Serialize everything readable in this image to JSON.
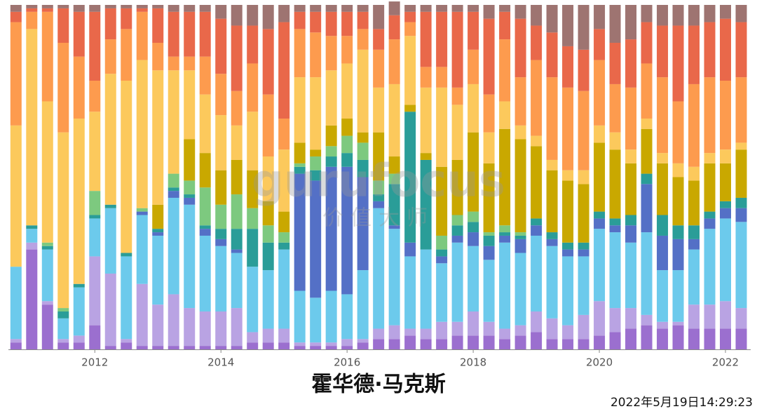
{
  "chart_data": {
    "type": "stacked-bar",
    "title": "霍华德·马克斯",
    "timestamp": "2022年5月19日14:29:23",
    "watermark": "gurufocus",
    "watermark_sub": "价值大师",
    "x": [
      2010.75,
      2011,
      2011.25,
      2011.5,
      2011.75,
      2012,
      2012.25,
      2012.5,
      2012.75,
      2013,
      2013.25,
      2013.5,
      2013.75,
      2014,
      2014.25,
      2014.5,
      2014.75,
      2015,
      2015.25,
      2015.5,
      2015.75,
      2016,
      2016.25,
      2016.5,
      2016.75,
      2017,
      2017.25,
      2017.5,
      2017.75,
      2018,
      2018.25,
      2018.5,
      2018.75,
      2019,
      2019.25,
      2019.5,
      2019.75,
      2020,
      2020.25,
      2020.5,
      2020.75,
      2021,
      2021.25,
      2021.5,
      2021.75,
      2022,
      2022.25
    ],
    "xlim": [
      2010.63,
      2022.4
    ],
    "xticks": [
      2012,
      2014,
      2016,
      2018,
      2020,
      2022
    ],
    "ylim": [
      0,
      100
    ],
    "series": [
      {
        "color": "#9b6fcf",
        "values": [
          2,
          29,
          13,
          2,
          2,
          7,
          1,
          2,
          1,
          1,
          1,
          1,
          1,
          1,
          1,
          2,
          2,
          2,
          1,
          1,
          1,
          1,
          2,
          3,
          3,
          4,
          3,
          3,
          4,
          4,
          4,
          3,
          4,
          5,
          3,
          3,
          3,
          4,
          5,
          6,
          7,
          6,
          7,
          6,
          6,
          6,
          6
        ]
      },
      {
        "color": "#b9a3e3",
        "values": [
          1,
          2,
          1,
          1,
          2,
          20,
          21,
          1,
          18,
          12,
          15,
          11,
          10,
          10,
          11,
          3,
          4,
          4,
          1,
          1,
          1,
          2,
          1,
          3,
          4,
          2,
          3,
          5,
          4,
          7,
          4,
          3,
          3,
          6,
          6,
          4,
          7,
          10,
          7,
          6,
          3,
          2,
          1,
          7,
          7,
          8,
          6
        ]
      },
      {
        "color": "#6ccaec",
        "values": [
          21,
          4,
          15,
          6,
          14,
          11,
          19,
          24,
          20,
          20,
          28,
          30,
          22,
          19,
          16,
          19,
          17,
          23,
          15,
          13,
          15,
          13,
          20,
          35,
          28,
          21,
          23,
          17,
          23,
          19,
          18,
          25,
          21,
          22,
          21,
          20,
          17,
          21,
          22,
          19,
          24,
          15,
          15,
          16,
          22,
          24,
          25
        ]
      },
      {
        "color": "#5470c6",
        "values": [
          0,
          0,
          0,
          0,
          0,
          0,
          0,
          0,
          1,
          1,
          2,
          2,
          2,
          2,
          1,
          0,
          0,
          0,
          34,
          34,
          36,
          37,
          27,
          2,
          1,
          4,
          0,
          2,
          2,
          4,
          4,
          2,
          4,
          3,
          2,
          2,
          2,
          3,
          2,
          5,
          14,
          10,
          9,
          3,
          3,
          3,
          4
        ]
      },
      {
        "color": "#2a9d98",
        "values": [
          0,
          1,
          1,
          2,
          1,
          1,
          1,
          1,
          0,
          1,
          1,
          1,
          1,
          3,
          6,
          11,
          8,
          2,
          2,
          3,
          3,
          4,
          5,
          2,
          12,
          38,
          26,
          2,
          3,
          3,
          3,
          1,
          1,
          2,
          2,
          2,
          2,
          2,
          2,
          3,
          3,
          6,
          4,
          4,
          2,
          2,
          3
        ]
      },
      {
        "color": "#7dc97f",
        "values": [
          0,
          0,
          1,
          1,
          0,
          7,
          0,
          0,
          1,
          0,
          4,
          4,
          11,
          7,
          10,
          6,
          5,
          3,
          1,
          4,
          3,
          5,
          5,
          4,
          3,
          0,
          0,
          4,
          3,
          3,
          1,
          2,
          1,
          0,
          0,
          0,
          0,
          0,
          0,
          0,
          0,
          0,
          0,
          0,
          0,
          0,
          0
        ]
      },
      {
        "color": "#c9a800",
        "values": [
          0,
          0,
          0,
          0,
          0,
          0,
          0,
          0,
          0,
          7,
          0,
          12,
          10,
          10,
          10,
          11,
          7,
          6,
          6,
          2,
          6,
          5,
          3,
          14,
          5,
          2,
          2,
          20,
          16,
          23,
          20,
          28,
          27,
          21,
          18,
          18,
          17,
          20,
          20,
          15,
          13,
          15,
          14,
          13,
          14,
          11,
          14
        ]
      },
      {
        "color": "#fcc95c",
        "values": [
          41,
          57,
          41,
          51,
          48,
          23,
          38,
          50,
          43,
          39,
          30,
          20,
          17,
          16,
          10,
          17,
          13,
          18,
          19,
          21,
          16,
          16,
          24,
          13,
          21,
          20,
          19,
          23,
          16,
          14,
          9,
          8,
          4,
          3,
          3,
          3,
          4,
          5,
          5,
          4,
          3,
          3,
          4,
          4,
          3,
          4,
          2
        ]
      },
      {
        "color": "#fd9b4e",
        "values": [
          30,
          5,
          26,
          26,
          18,
          9,
          10,
          15,
          14,
          8,
          4,
          4,
          11,
          12,
          10,
          14,
          18,
          9,
          14,
          13,
          10,
          8,
          6,
          11,
          13,
          4,
          6,
          6,
          5,
          10,
          11,
          18,
          14,
          22,
          24,
          24,
          23,
          19,
          14,
          18,
          16,
          22,
          18,
          24,
          22,
          20,
          19
        ]
      },
      {
        "color": "#e9684a",
        "values": [
          3,
          1,
          1,
          10,
          13,
          20,
          9,
          6,
          1,
          10,
          13,
          13,
          13,
          16,
          19,
          11,
          19,
          28,
          5,
          6,
          7,
          7,
          5,
          6,
          7,
          3,
          16,
          16,
          22,
          11,
          22,
          8,
          17,
          10,
          13,
          12,
          12,
          9,
          12,
          14,
          12,
          15,
          22,
          17,
          16,
          18,
          16
        ]
      },
      {
        "color": "#9e7471",
        "values": [
          2,
          1,
          1,
          1,
          2,
          2,
          1,
          1,
          1,
          1,
          2,
          2,
          2,
          4,
          6,
          6,
          7,
          5,
          2,
          2,
          2,
          2,
          2,
          7,
          4,
          2,
          2,
          2,
          2,
          2,
          4,
          2,
          4,
          6,
          8,
          12,
          13,
          7,
          11,
          10,
          5,
          6,
          6,
          6,
          5,
          4,
          5
        ]
      }
    ]
  }
}
